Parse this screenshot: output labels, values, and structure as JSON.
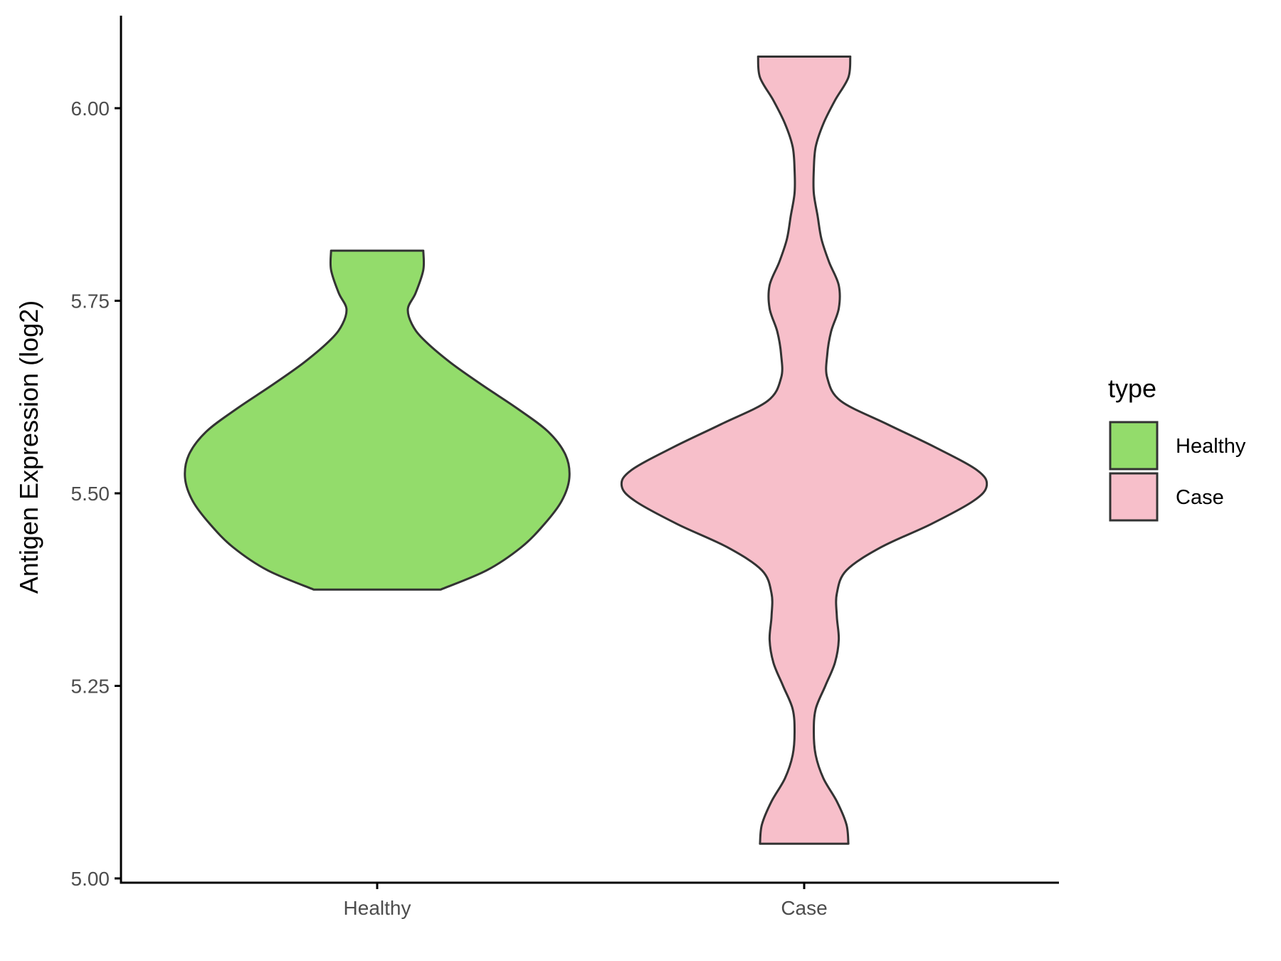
{
  "chart_data": {
    "type": "violin",
    "title": "",
    "xlabel": "",
    "ylabel": "Antigen Expression (log2)",
    "ylim": [
      5.0,
      6.12
    ],
    "y_ticks": [
      "5.00",
      "5.25",
      "5.50",
      "5.75",
      "6.00"
    ],
    "categories": [
      "Healthy",
      "Case"
    ],
    "grid": false,
    "legend": {
      "title": "type",
      "position": "right",
      "items": [
        "Healthy",
        "Case"
      ]
    },
    "series": [
      {
        "name": "Healthy",
        "color": "#93dc6b",
        "y_min": 5.375,
        "y_max": 5.815,
        "profile": [
          [
            5.375,
            0.33
          ],
          [
            5.4,
            0.57
          ],
          [
            5.43,
            0.75
          ],
          [
            5.46,
            0.87
          ],
          [
            5.49,
            0.96
          ],
          [
            5.52,
            1.0
          ],
          [
            5.55,
            0.98
          ],
          [
            5.58,
            0.89
          ],
          [
            5.61,
            0.73
          ],
          [
            5.64,
            0.55
          ],
          [
            5.67,
            0.38
          ],
          [
            5.7,
            0.24
          ],
          [
            5.72,
            0.18
          ],
          [
            5.74,
            0.16
          ],
          [
            5.76,
            0.2
          ],
          [
            5.79,
            0.24
          ],
          [
            5.815,
            0.24
          ]
        ]
      },
      {
        "name": "Case",
        "color": "#f7bfca",
        "y_min": 5.045,
        "y_max": 6.067,
        "profile": [
          [
            5.045,
            0.23
          ],
          [
            5.07,
            0.22
          ],
          [
            5.1,
            0.17
          ],
          [
            5.13,
            0.1
          ],
          [
            5.16,
            0.06
          ],
          [
            5.19,
            0.05
          ],
          [
            5.22,
            0.06
          ],
          [
            5.25,
            0.11
          ],
          [
            5.28,
            0.16
          ],
          [
            5.31,
            0.18
          ],
          [
            5.34,
            0.17
          ],
          [
            5.37,
            0.17
          ],
          [
            5.4,
            0.22
          ],
          [
            5.43,
            0.4
          ],
          [
            5.46,
            0.66
          ],
          [
            5.49,
            0.88
          ],
          [
            5.51,
            0.95
          ],
          [
            5.53,
            0.9
          ],
          [
            5.56,
            0.68
          ],
          [
            5.59,
            0.43
          ],
          [
            5.62,
            0.19
          ],
          [
            5.65,
            0.12
          ],
          [
            5.68,
            0.12
          ],
          [
            5.71,
            0.14
          ],
          [
            5.74,
            0.18
          ],
          [
            5.77,
            0.18
          ],
          [
            5.8,
            0.13
          ],
          [
            5.83,
            0.09
          ],
          [
            5.86,
            0.07
          ],
          [
            5.89,
            0.05
          ],
          [
            5.92,
            0.05
          ],
          [
            5.95,
            0.06
          ],
          [
            5.98,
            0.1
          ],
          [
            6.01,
            0.16
          ],
          [
            6.04,
            0.23
          ],
          [
            6.067,
            0.24
          ]
        ]
      }
    ]
  },
  "style": {
    "outline_color": "#333333",
    "axis_color": "#000000"
  }
}
